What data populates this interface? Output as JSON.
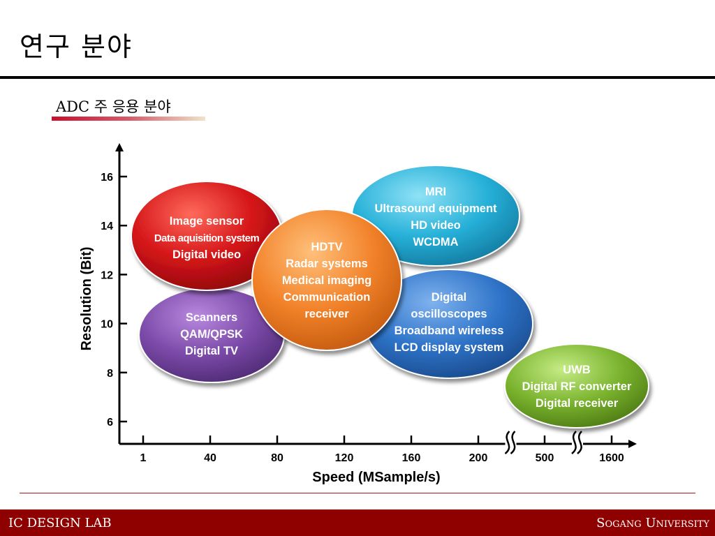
{
  "slide": {
    "title": "연구 분야",
    "subtitle": "ADC 주 응용 분야"
  },
  "footer": {
    "left": "IC DESIGN LAB",
    "right": "Sogang University"
  },
  "colors": {
    "red_bubble": "#d41418",
    "purple_bubble": "#7b4aa8",
    "orange_bubble": "#f2822a",
    "cyan_bubble": "#26b0d8",
    "blue_bubble": "#2e73c8",
    "green_bubble": "#7ab32e",
    "footer": "#8f0000"
  },
  "chart_data": {
    "type": "bubble-regions",
    "xlabel": "Speed (MSample/s)",
    "ylabel": "Resolution (Bit)",
    "x_ticks": [
      "1",
      "40",
      "80",
      "120",
      "160",
      "200",
      "500",
      "1600"
    ],
    "y_ticks": [
      6,
      8,
      10,
      12,
      14,
      16
    ],
    "axis_breaks_after": [
      "200",
      "500"
    ],
    "regions": [
      {
        "lines": [
          "MRI",
          "Ultrasound equipment",
          "HD video",
          "WCDMA"
        ],
        "x_center": 145,
        "y_center": 14.2,
        "color": "cyan"
      },
      {
        "lines": [
          "Digital",
          "oscilloscopes",
          "Broadband wireless",
          "LCD display system"
        ],
        "x_center": 138,
        "y_center": 10.2,
        "color": "blue"
      },
      {
        "lines": [
          "UWB",
          "Digital RF converter",
          "Digital receiver"
        ],
        "x_center": 1000,
        "y_center": 7.5,
        "color": "green"
      },
      {
        "lines": [
          "Scanners",
          "QAM/QPSK",
          "Digital TV"
        ],
        "x_center": 40,
        "y_center": 9.9,
        "color": "purple"
      },
      {
        "lines": [
          "Image sensor",
          "Data aquisition system",
          "Digital video"
        ],
        "x_center": 38,
        "y_center": 14.0,
        "color": "red"
      },
      {
        "lines": [
          "HDTV",
          "Radar systems",
          "Medical imaging",
          "Communication",
          "receiver"
        ],
        "x_center": 82,
        "y_center": 11.3,
        "color": "orange"
      }
    ]
  }
}
